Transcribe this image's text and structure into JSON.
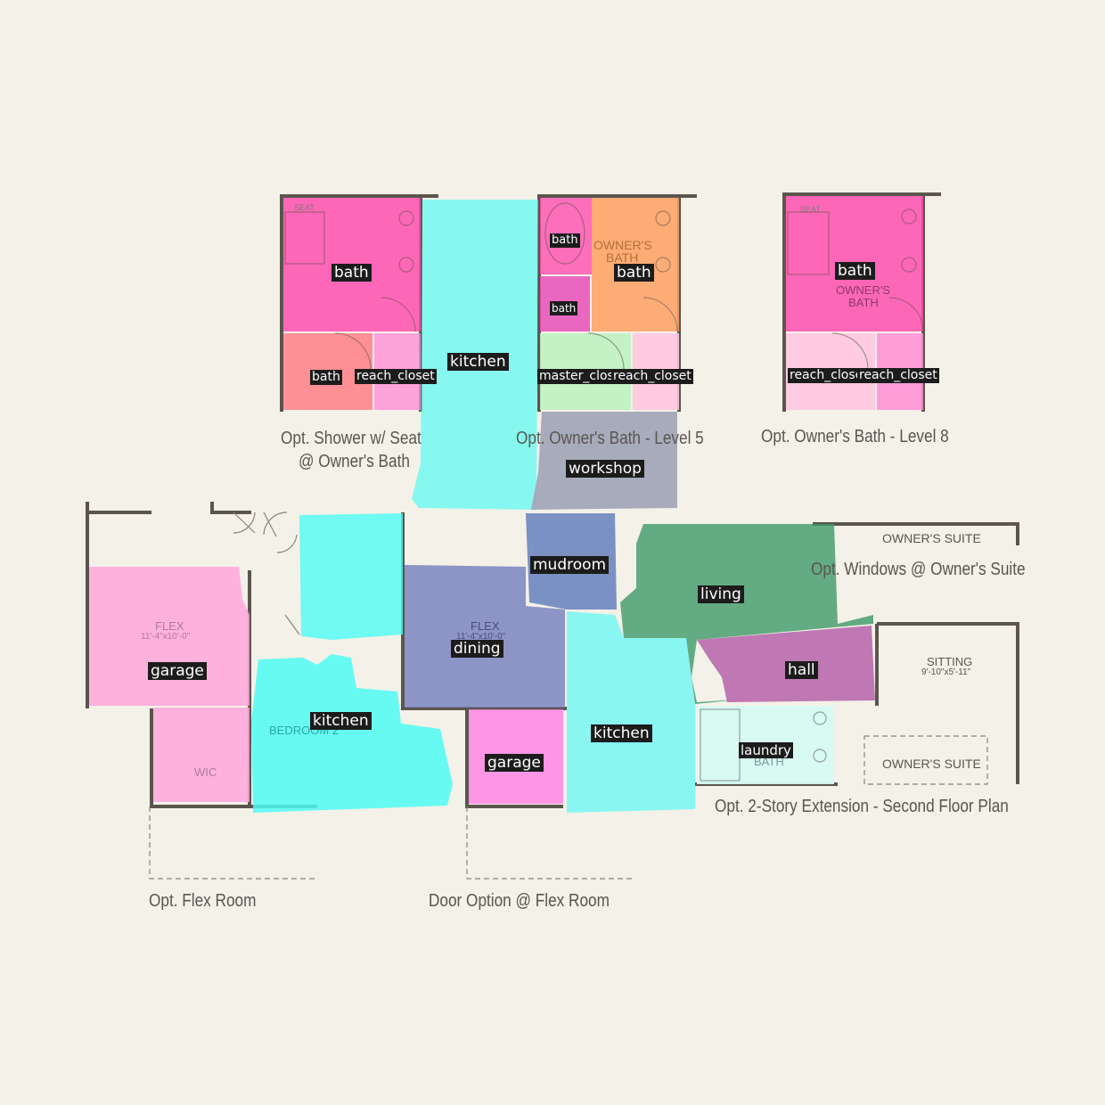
{
  "captions": {
    "shower_seat_l1": "Opt. Shower w/ Seat",
    "shower_seat_l2": "@ Owner's Bath",
    "owners_bath_l5": "Opt. Owner's Bath - Level 5",
    "owners_bath_l8": "Opt. Owner's Bath - Level 8",
    "windows_suite": "Opt. Windows @ Owner's Suite",
    "two_story": "Opt. 2-Story Extension - Second Floor Plan",
    "flex_room": "Opt. Flex Room",
    "door_option": "Door Option @ Flex Room"
  },
  "room_text": {
    "owners_suite_top": "OWNER'S SUITE",
    "owners_suite_bottom": "OWNER'S SUITE",
    "sitting": "SITTING",
    "sitting_dim": "9'-10\"x5'-11\"",
    "owners_bath_a": "OWNER'S",
    "owners_bath_b": "BATH",
    "owners_bath_c": "OWNER'S",
    "owners_bath_d": "BATH",
    "flex_a": "FLEX",
    "flex_a_dim": "11'-4\"x10'-0\"",
    "flex_b": "FLEX",
    "flex_b_dim": "11'-4\"x10'-0\"",
    "wic_a": "WIC",
    "bedroom2": "BEDROOM 2",
    "bath_bottom": "BATH",
    "seat_a": "SEAT",
    "seat_b": "SEAT"
  },
  "labels": {
    "bath_1": "bath",
    "reach_closet_1": "reach_closet",
    "bath_2": "bath",
    "kitchen_top": "kitchen",
    "bath_3": "bath",
    "bath_4": "bath",
    "bath_5": "bath",
    "master_closet": "master_closet",
    "reach_closet_2": "reach_closet",
    "workshop": "workshop",
    "bath_6": "bath",
    "reach_closet_3": "reach_closet",
    "reach_closet_4": "reach_closet",
    "mudroom": "mudroom",
    "living": "living",
    "garage_1": "garage",
    "dining": "dining",
    "hall": "hall",
    "kitchen_2": "kitchen",
    "kitchen_3": "kitchen",
    "laundry": "laundry",
    "garage_2": "garage"
  },
  "colors": {
    "background": "#f4f1e8",
    "wall": "#5b554e",
    "bath": "#ff4fae",
    "kitchen": "#4dfcf5",
    "garage": "#ffa6da",
    "dining": "#7a84c0",
    "living": "#3f9a68",
    "hall": "#b96aae",
    "workshop": "#a3a6b8",
    "mudroom": "#6f86bf",
    "laundry": "#d6faf3",
    "master_closet": "#bff2c0",
    "reach_closet": "#ffc6e0",
    "orange_bath": "#ffa060",
    "salmon_bath": "#ff7f86"
  }
}
